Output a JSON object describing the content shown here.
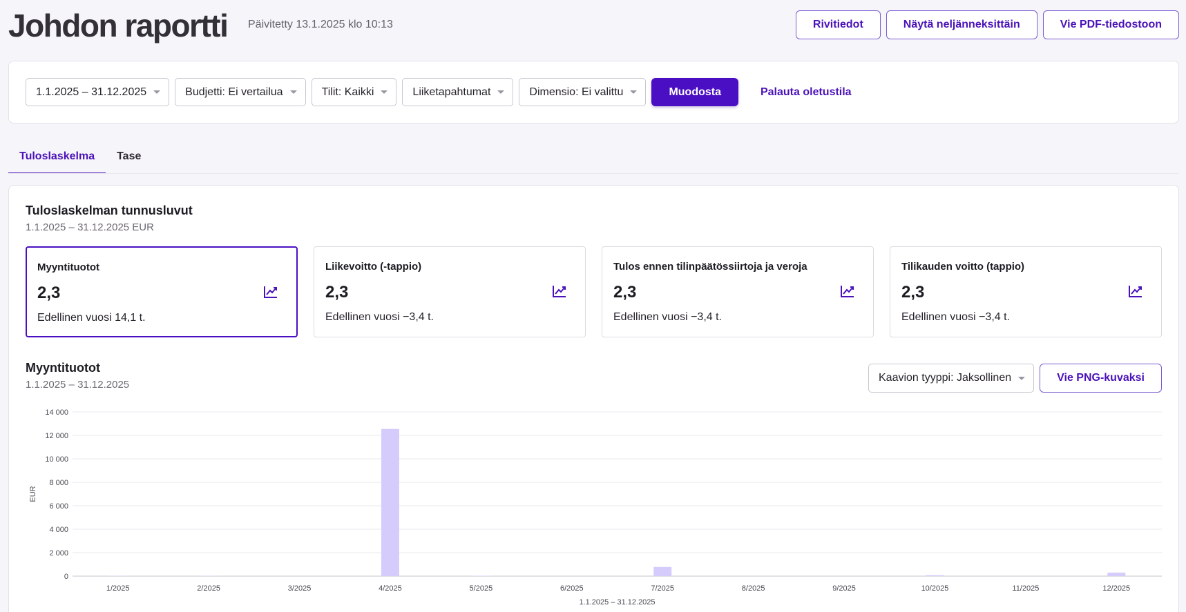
{
  "header": {
    "title": "Johdon raportti",
    "updated": "Päivitetty 13.1.2025 klo 10:13",
    "actions": [
      "Rivitiedot",
      "Näytä neljänneksittäin",
      "Vie PDF-tiedostoon"
    ]
  },
  "filters": {
    "selects": [
      "1.1.2025 – 31.12.2025",
      "Budjetti: Ei vertailua",
      "Tilit: Kaikki",
      "Liiketapahtumat",
      "Dimensio: Ei valittu"
    ],
    "submit": "Muodosta",
    "reset": "Palauta oletustila"
  },
  "tabs": [
    {
      "label": "Tuloslaskelma",
      "active": true
    },
    {
      "label": "Tase",
      "active": false
    }
  ],
  "kpi_section": {
    "title": "Tuloslaskelman tunnusluvut",
    "subtitle": "1.1.2025 – 31.12.2025 EUR",
    "cards": [
      {
        "label": "Myyntituotot",
        "value": "2,3",
        "prev": "Edellinen vuosi 14,1 t.",
        "selected": true,
        "icon": "trend-chart-icon"
      },
      {
        "label": "Liikevoitto (-tappio)",
        "value": "2,3",
        "prev": "Edellinen vuosi −3,4 t.",
        "selected": false,
        "icon": "trend-chart-icon"
      },
      {
        "label": "Tulos ennen tilinpäätössiirtoja ja veroja",
        "value": "2,3",
        "prev": "Edellinen vuosi −3,4 t.",
        "selected": false,
        "icon": "trend-chart-icon"
      },
      {
        "label": "Tilikauden voitto (tappio)",
        "value": "2,3",
        "prev": "Edellinen vuosi −3,4 t.",
        "selected": false,
        "icon": "trend-chart-icon"
      }
    ]
  },
  "chart_section": {
    "title": "Myyntituotot",
    "subtitle": "1.1.2025 – 31.12.2025",
    "chart_type_select": "Kaavion tyyppi: Jaksollinen",
    "export_button": "Vie PNG-kuvaksi"
  },
  "chart_data": {
    "type": "bar",
    "categories": [
      "1/2025",
      "2/2025",
      "3/2025",
      "4/2025",
      "5/2025",
      "6/2025",
      "7/2025",
      "8/2025",
      "9/2025",
      "10/2025",
      "11/2025",
      "12/2025"
    ],
    "values": [
      20,
      20,
      0,
      12550,
      30,
      0,
      780,
      0,
      0,
      80,
      0,
      300
    ],
    "ylabel": "EUR",
    "xlabel": "1.1.2025 – 31.12.2025",
    "ylim": [
      0,
      14000
    ],
    "yticks": [
      0,
      2000,
      4000,
      6000,
      8000,
      10000,
      12000,
      14000
    ],
    "ytick_labels": [
      "0",
      "2 000",
      "4 000",
      "6 000",
      "8 000",
      "10 000",
      "12 000",
      "14 000"
    ],
    "grid": true,
    "bar_color": "#d6ccfb",
    "axis_color": "#c7c4cc",
    "grid_color": "#e9e7ed"
  }
}
